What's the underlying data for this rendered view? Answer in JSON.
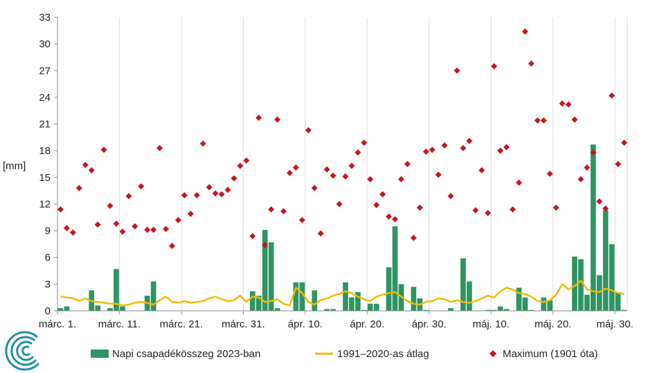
{
  "colors": {
    "bars": "#2e9462",
    "average_line": "#f5b800",
    "maximum_points": "#c8141e",
    "axis": "#8a8a8a",
    "grid": "#dcdcdc",
    "logo": "#1d8fa3"
  },
  "logo": {
    "icon": "concentric-swirl-logo"
  },
  "chart_data": {
    "type": "bar",
    "ylabel": "[mm]",
    "ylim": [
      0,
      33
    ],
    "yticks": [
      0,
      3,
      6,
      9,
      12,
      15,
      18,
      21,
      24,
      27,
      30,
      33
    ],
    "grid": "vertical gridlines every 10 days",
    "legend_placement": "bottom",
    "x_categories_count": 92,
    "x_tick_labels": [
      "márc. 1.",
      "márc. 11.",
      "márc. 21.",
      "márc. 31.",
      "ápr. 10.",
      "ápr. 20.",
      "ápr. 30.",
      "máj. 10.",
      "máj. 20.",
      "máj. 30."
    ],
    "x_tick_days": [
      1,
      11,
      21,
      31,
      41,
      51,
      61,
      71,
      81,
      91
    ],
    "series": [
      {
        "name": "Napi csapadékösszeg 2023-ban",
        "kind": "bar",
        "values": [
          0.3,
          0.5,
          0,
          0,
          0,
          2.3,
          0.6,
          0,
          0.3,
          4.7,
          0.5,
          0,
          0,
          0,
          1.7,
          3.3,
          0,
          0,
          0,
          0,
          0,
          0,
          0,
          0,
          0,
          0,
          0,
          0,
          0,
          0,
          0,
          2.2,
          1.7,
          9.1,
          7.7,
          0.3,
          0,
          0,
          3.2,
          3.2,
          0,
          2.3,
          0,
          0.2,
          0.2,
          0,
          3.2,
          1.5,
          2.1,
          0.1,
          0.8,
          0.8,
          0,
          4.9,
          9.5,
          3,
          0,
          2.7,
          1.4,
          0.1,
          0,
          0,
          0,
          0.3,
          0,
          5.9,
          3.3,
          0,
          0,
          0.1,
          0.1,
          0.5,
          0.2,
          0,
          2.6,
          1.5,
          0.1,
          0,
          1.5,
          1.2,
          0,
          0,
          0,
          6.1,
          5.8,
          1.8,
          18.7,
          4,
          11.3,
          7.5,
          2.1,
          0.1
        ]
      },
      {
        "name": "1991–2020-as átlag",
        "kind": "line",
        "values": [
          1.6,
          1.5,
          1.4,
          1.1,
          1.4,
          1.1,
          1.0,
          0.9,
          0.8,
          0.8,
          0.6,
          0.7,
          0.9,
          1.0,
          0.9,
          0.7,
          1.2,
          1.6,
          1.0,
          0.9,
          1.1,
          0.9,
          1.0,
          1.1,
          1.4,
          1.6,
          1.3,
          1.1,
          1.2,
          1.7,
          1.0,
          1.6,
          1.5,
          1.0,
          1.1,
          1.3,
          0.8,
          0.6,
          2.6,
          2.0,
          1.0,
          0.7,
          1.2,
          1.4,
          1.7,
          1.9,
          2.2,
          2.0,
          1.6,
          1.3,
          1.1,
          1.6,
          1.8,
          2.0,
          2.1,
          1.6,
          1.1,
          0.8,
          0.7,
          1.0,
          1.1,
          1.4,
          1.3,
          1.0,
          1.2,
          1.0,
          0.9,
          1.1,
          1.4,
          1.7,
          1.5,
          2.2,
          2.6,
          2.4,
          2.0,
          1.9,
          1.6,
          1.1,
          1.0,
          1.2,
          1.8,
          3.0,
          2.4,
          2.8,
          3.4,
          2.4,
          2.2,
          2.1,
          2.5,
          2.3,
          2.0,
          1.9
        ]
      },
      {
        "name": "Maximum (1901 óta)",
        "kind": "scatter",
        "values": [
          11.4,
          9.3,
          8.8,
          13.8,
          16.4,
          15.8,
          9.7,
          18.1,
          11.8,
          9.8,
          8.9,
          12.9,
          9.5,
          14.0,
          9.1,
          9.1,
          18.3,
          9.2,
          7.3,
          10.2,
          13.0,
          10.9,
          13.0,
          18.8,
          13.9,
          13.2,
          13.1,
          13.6,
          14.9,
          16.3,
          16.9,
          8.4,
          21.7,
          7.4,
          11.4,
          21.5,
          11.2,
          15.5,
          16.1,
          10.2,
          20.3,
          13.8,
          8.7,
          15.9,
          15.2,
          12.0,
          15.1,
          16.3,
          17.8,
          18.9,
          14.8,
          11.9,
          13.1,
          10.6,
          10.3,
          14.8,
          16.5,
          8.2,
          11.6,
          17.9,
          18.1,
          15.3,
          18.6,
          12.9,
          27.0,
          18.3,
          19.1,
          11.3,
          15.8,
          11.0,
          27.5,
          18.0,
          18.4,
          11.4,
          14.4,
          31.4,
          27.8,
          21.4,
          21.4,
          15.4,
          11.6,
          23.3,
          23.2,
          21.5,
          14.8,
          16.1,
          17.8,
          12.3,
          11.5,
          24.2,
          16.5,
          18.9
        ]
      }
    ]
  }
}
